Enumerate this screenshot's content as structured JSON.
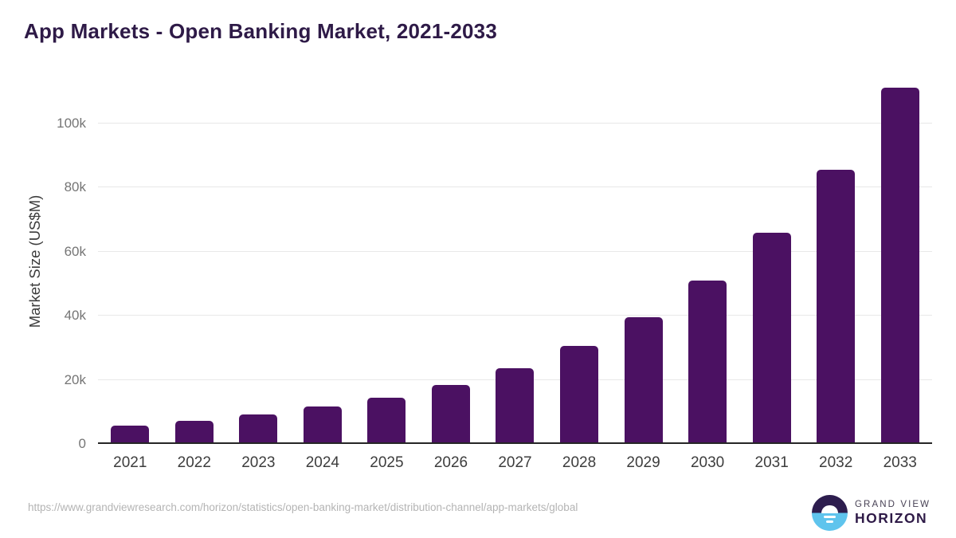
{
  "page": {
    "title": "App Markets - Open Banking Market, 2021-2033"
  },
  "chart_data": {
    "type": "bar",
    "title": "App Markets - Open Banking Market, 2021-2033",
    "categories": [
      "2021",
      "2022",
      "2023",
      "2024",
      "2025",
      "2026",
      "2027",
      "2028",
      "2029",
      "2030",
      "2031",
      "2032",
      "2033"
    ],
    "values": [
      5700,
      7100,
      9300,
      11700,
      14500,
      18500,
      23700,
      30500,
      39500,
      50900,
      65800,
      85400,
      111100
    ],
    "xlabel": "",
    "ylabel": "Market Size (US$M)",
    "ylim": [
      0,
      115000
    ],
    "yticks": [
      0,
      20000,
      40000,
      60000,
      80000,
      100000
    ],
    "ytick_labels": [
      "0",
      "20k",
      "40k",
      "60k",
      "80k",
      "100k"
    ],
    "bar_color": "#4b1162",
    "grid": true,
    "gridline_color": "#e8e8e8",
    "legend": false
  },
  "footer": {
    "source_url": "https://www.grandviewresearch.com/horizon/statistics/open-banking-market/distribution-channel/app-markets/global",
    "logo": {
      "brand_line1": "GRAND VIEW",
      "brand_line2": "HORIZON"
    }
  },
  "colors": {
    "title": "#2e1a47",
    "bar": "#4b1162",
    "axis_line": "#262626",
    "gridline": "#e8e8e8",
    "y_tick_label": "#757575",
    "x_tick_label": "#3d3d3d",
    "url_text": "#b4b4b4",
    "logo_dark_half": "#2d1d4e",
    "logo_blue_half": "#5fc4ed"
  }
}
